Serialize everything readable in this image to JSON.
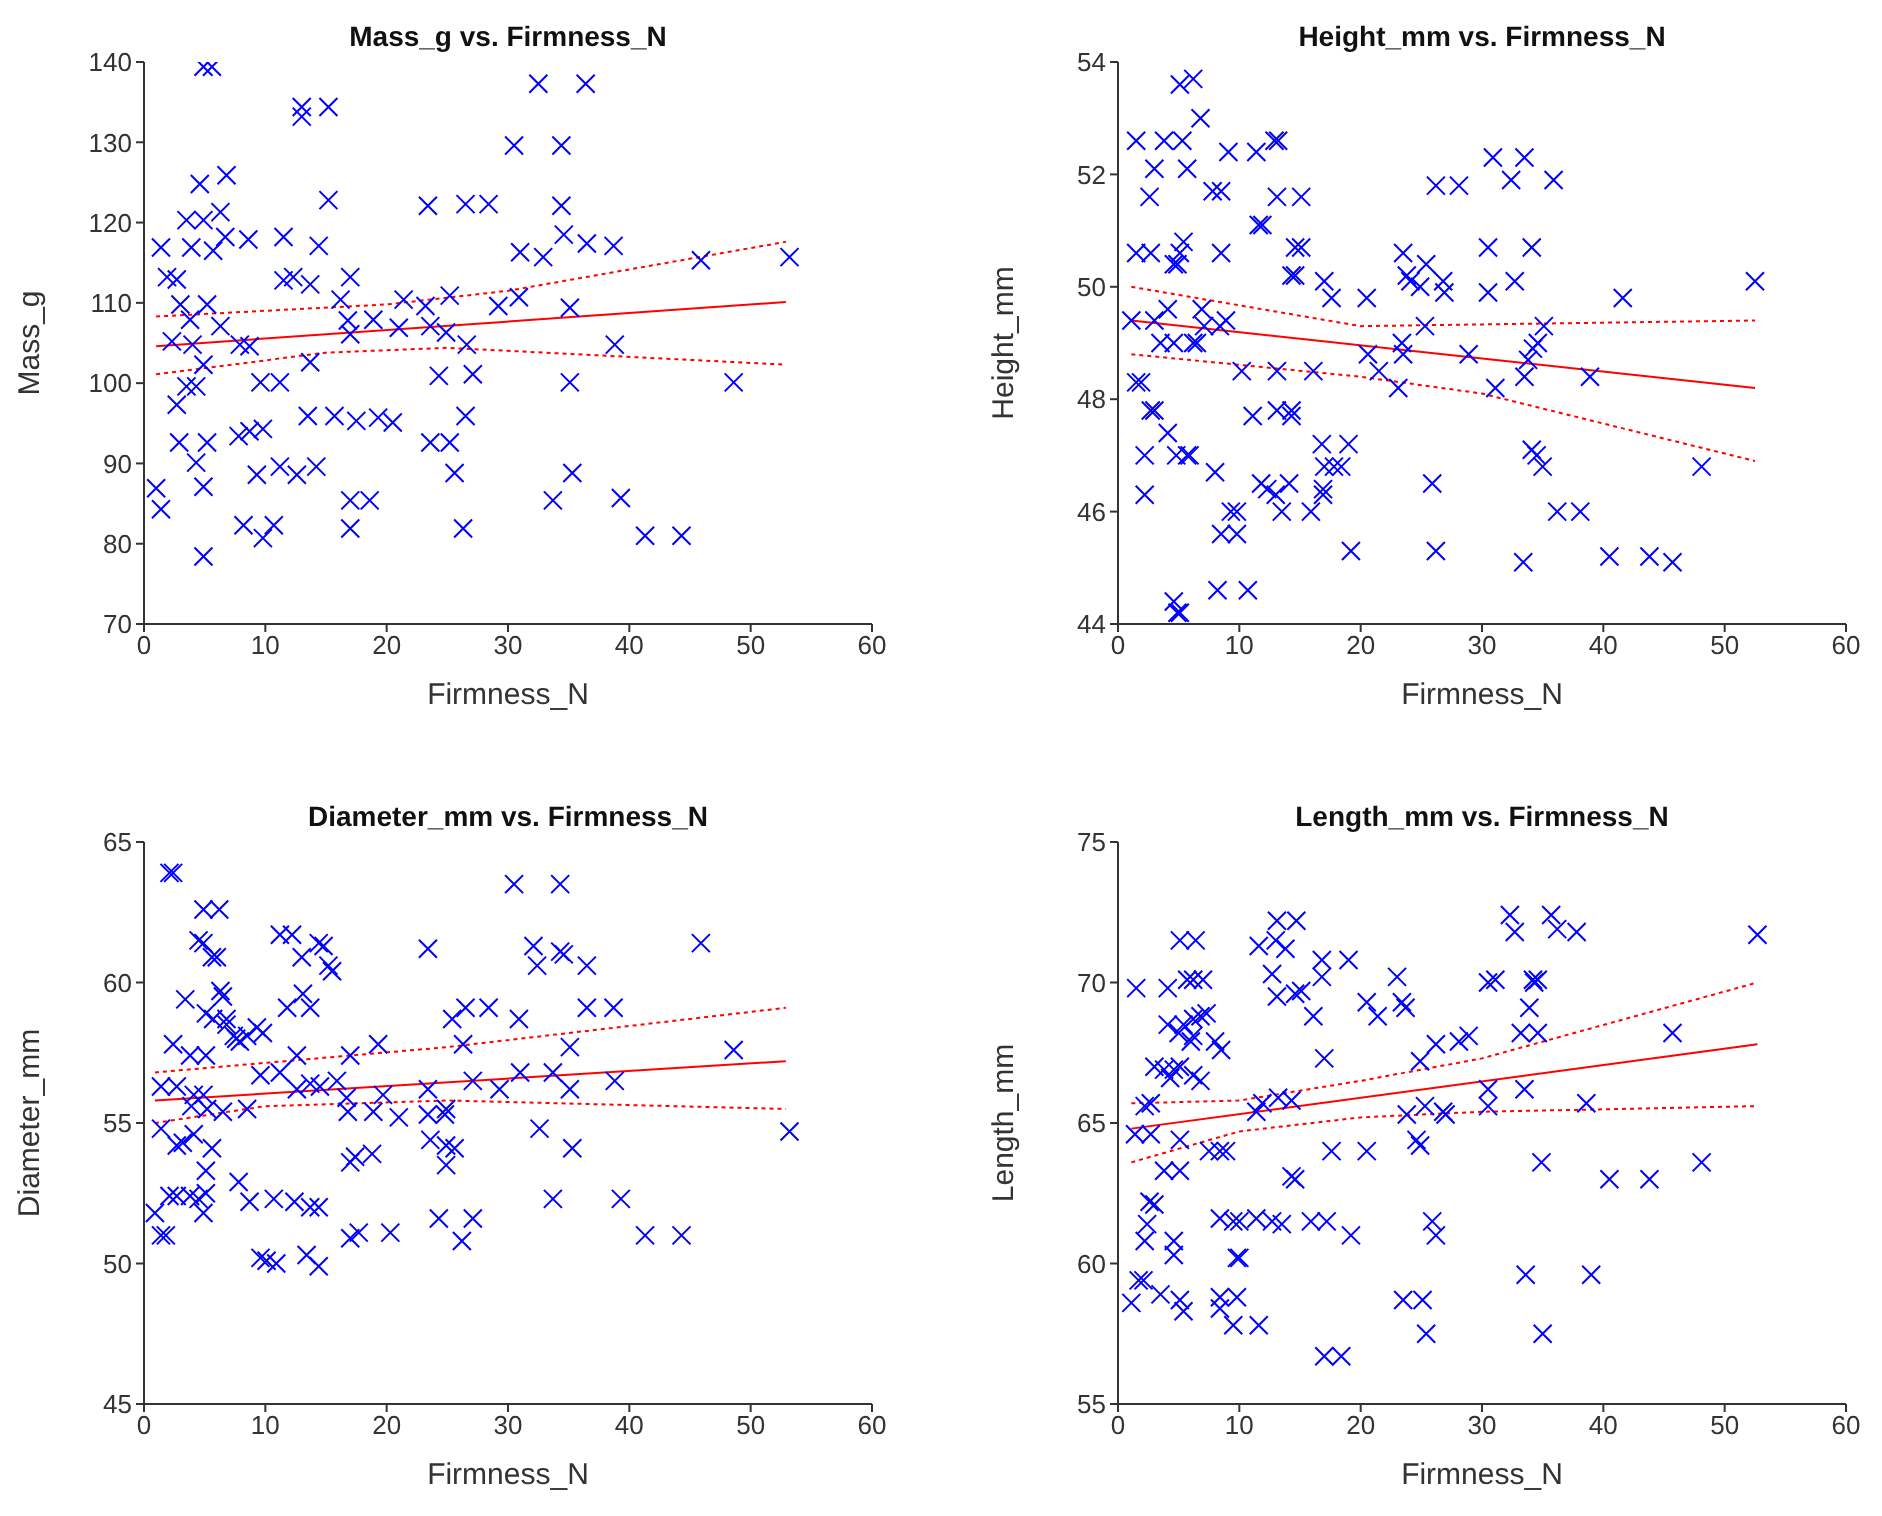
{
  "chart_data": [
    {
      "type": "scatter",
      "title": "Mass_g vs. Firmness_N",
      "xlabel": "Firmness_N",
      "ylabel": "Mass_g",
      "xlim": [
        0,
        60
      ],
      "ylim": [
        70,
        140
      ],
      "xticks": [
        0,
        10,
        20,
        30,
        40,
        50,
        60
      ],
      "yticks": [
        70,
        80,
        90,
        100,
        110,
        120,
        130,
        140
      ],
      "marker": "cross",
      "series": [
        {
          "color": "#0000ff",
          "x": [
            4.9,
            5.6,
            32.5,
            36.4,
            13.0,
            13.0,
            15.2,
            30.5,
            34.4,
            4.6,
            6.8,
            6.3,
            15.2,
            23.4,
            26.5,
            28.4,
            34.4,
            3.5,
            4.9,
            1.4,
            3.9,
            5.7,
            6.7,
            8.6,
            11.5,
            14.4,
            31.0,
            32.9,
            34.6,
            36.5,
            38.7,
            45.9,
            53.2,
            1.9,
            2.7,
            11.5,
            12.3,
            13.7,
            17.0,
            3.0,
            5.2,
            16.2,
            21.4,
            23.2,
            25.2,
            29.2,
            30.9,
            35.1,
            3.8,
            6.3,
            16.8,
            18.9,
            21.0,
            23.6,
            24.9,
            2.3,
            4.0,
            7.9,
            8.7,
            17.0,
            26.6,
            38.8,
            4.9,
            13.7,
            9.6,
            11.2,
            24.3,
            27.1,
            35.1,
            48.6,
            3.5,
            4.3,
            2.7,
            13.5,
            15.7,
            17.5,
            19.3,
            20.5,
            26.5,
            2.9,
            5.2,
            7.8,
            8.7,
            9.8,
            23.6,
            25.2,
            4.3,
            1.0,
            4.9,
            9.3,
            11.2,
            12.6,
            14.2,
            25.6,
            35.3,
            1.4,
            33.7,
            39.3,
            17.0,
            18.6,
            8.2,
            10.7,
            9.8,
            17.0,
            26.3,
            41.3,
            44.3,
            4.9
          ],
          "values": [
            139.4,
            139.4,
            137.3,
            137.3,
            134.4,
            133.2,
            134.4,
            129.6,
            129.6,
            124.8,
            125.9,
            121.3,
            122.8,
            122.1,
            122.3,
            122.3,
            122.1,
            120.3,
            120.3,
            116.9,
            116.9,
            116.5,
            118.2,
            117.9,
            118.2,
            117.1,
            116.3,
            115.7,
            118.5,
            117.4,
            117.1,
            115.3,
            115.7,
            113.2,
            112.9,
            112.8,
            113.2,
            112.3,
            113.2,
            109.8,
            109.8,
            110.4,
            110.4,
            109.6,
            110.9,
            109.6,
            110.7,
            109.4,
            107.9,
            107.1,
            107.8,
            107.9,
            106.9,
            107.1,
            106.3,
            105.2,
            104.8,
            104.8,
            104.6,
            106.1,
            104.8,
            104.8,
            102.3,
            102.6,
            100.1,
            100.1,
            100.9,
            101.1,
            100.1,
            100.1,
            99.6,
            99.6,
            97.3,
            95.9,
            95.9,
            95.3,
            95.7,
            95.1,
            95.9,
            92.6,
            92.6,
            93.4,
            94.0,
            94.3,
            92.6,
            92.6,
            90.1,
            86.9,
            87.1,
            88.6,
            89.6,
            88.6,
            89.6,
            88.8,
            88.8,
            84.3,
            85.4,
            85.7,
            85.4,
            85.4,
            82.3,
            82.3,
            80.7,
            81.9,
            81.9,
            81.0,
            81.0,
            78.4
          ]
        },
        {
          "type": "line",
          "marker": "none",
          "color": "#ff0000",
          "line_style": "solid",
          "x": [
            1.0,
            52.9
          ],
          "values": [
            104.6,
            110.1
          ]
        },
        {
          "type": "line",
          "marker": "none",
          "color": "#ff0000",
          "line_style": "dotted",
          "x": [
            1.0,
            20,
            30,
            52.9
          ],
          "values": [
            108.3,
            109.8,
            111.5,
            117.6
          ]
        },
        {
          "type": "line",
          "marker": "none",
          "color": "#ff0000",
          "line_style": "dotted",
          "x": [
            1.0,
            15,
            25,
            52.9
          ],
          "values": [
            101.1,
            103.8,
            104.4,
            102.3
          ]
        }
      ]
    },
    {
      "type": "scatter",
      "title": "Height_mm vs. Firmness_N",
      "xlabel": "Firmness_N",
      "ylabel": "Height_mm",
      "xlim": [
        0,
        60
      ],
      "ylim": [
        44,
        54
      ],
      "xticks": [
        0,
        10,
        20,
        30,
        40,
        50,
        60
      ],
      "yticks": [
        44,
        46,
        48,
        50,
        52,
        54
      ],
      "marker": "cross",
      "series": [
        {
          "color": "#0000ff",
          "x": [
            5.1,
            6.2,
            6.8,
            1.5,
            3.8,
            5.3,
            3.0,
            5.7,
            9.1,
            11.4,
            12.9,
            13.2,
            26.2,
            28.1,
            30.9,
            32.4,
            33.5,
            35.9,
            2.6,
            13.1,
            15.1,
            7.8,
            8.5,
            11.6,
            11.9,
            1.5,
            2.7,
            5.1,
            5.4,
            8.5,
            14.6,
            15.1,
            30.5,
            34.1,
            4.6,
            4.9,
            14.6,
            14.3,
            23.5,
            23.8,
            24.1,
            24.9,
            25.4,
            26.8,
            26.9,
            17.0,
            17.6,
            20.5,
            30.5,
            32.7,
            41.6,
            52.5,
            1.1,
            3.0,
            4.1,
            6.9,
            7.1,
            25.3,
            35.1,
            34.6,
            34.2,
            33.8,
            3.5,
            4.6,
            6.2,
            6.5,
            8.4,
            8.9,
            23.4,
            10.2,
            13.1,
            16.1,
            20.6,
            21.5,
            23.1,
            23.5,
            28.9,
            31.1,
            33.5,
            38.9,
            1.5,
            1.9,
            2.7,
            3.0,
            11.1,
            13.1,
            14.3,
            14.3,
            4.1,
            2.2,
            4.8,
            5.7,
            5.9,
            16.8,
            19.0,
            17.0,
            17.8,
            18.4,
            34.1,
            34.5,
            35.0,
            48.1,
            2.2,
            8.0,
            9.3,
            9.8,
            11.8,
            12.3,
            13.0,
            14.1,
            16.9,
            16.9,
            25.9,
            13.5,
            15.9,
            36.2,
            38.1,
            8.5,
            9.8,
            19.2,
            26.2,
            33.4,
            40.5,
            43.8,
            45.7,
            8.2,
            10.7,
            4.6,
            5.1,
            4.9
          ],
          "values": [
            53.6,
            53.7,
            53.0,
            52.6,
            52.6,
            52.6,
            52.1,
            52.1,
            52.4,
            52.4,
            52.6,
            52.6,
            51.8,
            51.8,
            52.3,
            51.9,
            52.3,
            51.9,
            51.6,
            51.6,
            51.6,
            51.7,
            51.7,
            51.1,
            51.1,
            50.6,
            50.6,
            50.6,
            50.8,
            50.6,
            50.7,
            50.7,
            50.7,
            50.7,
            50.4,
            50.4,
            50.2,
            50.2,
            50.6,
            50.2,
            50.1,
            50.0,
            50.4,
            50.1,
            49.9,
            50.1,
            49.8,
            49.8,
            49.9,
            50.1,
            49.8,
            50.1,
            49.4,
            49.4,
            49.6,
            49.6,
            49.3,
            49.3,
            49.3,
            49.0,
            48.9,
            48.7,
            49.0,
            49.0,
            49.0,
            49.0,
            49.3,
            49.4,
            49.0,
            48.5,
            48.5,
            48.5,
            48.8,
            48.5,
            48.2,
            48.8,
            48.8,
            48.2,
            48.4,
            48.4,
            48.3,
            48.3,
            47.8,
            47.8,
            47.7,
            47.8,
            47.8,
            47.7,
            47.4,
            47.0,
            47.0,
            47.0,
            47.0,
            47.2,
            47.2,
            46.8,
            46.8,
            46.8,
            47.1,
            47.0,
            46.8,
            46.8,
            46.3,
            46.7,
            46.0,
            46.0,
            46.5,
            46.4,
            46.3,
            46.5,
            46.4,
            46.3,
            46.5,
            46.0,
            46.0,
            46.0,
            46.0,
            45.6,
            45.6,
            45.3,
            45.3,
            45.1,
            45.2,
            45.2,
            45.1,
            44.6,
            44.6,
            44.4,
            44.2,
            44.2
          ]
        },
        {
          "type": "line",
          "marker": "none",
          "color": "#ff0000",
          "line_style": "solid",
          "x": [
            1.1,
            52.5
          ],
          "values": [
            49.4,
            48.2
          ]
        },
        {
          "type": "line",
          "marker": "none",
          "color": "#ff0000",
          "line_style": "dotted",
          "x": [
            1.1,
            20,
            52.5
          ],
          "values": [
            50.0,
            49.3,
            49.4
          ]
        },
        {
          "type": "line",
          "marker": "none",
          "color": "#ff0000",
          "line_style": "dotted",
          "x": [
            1.1,
            20,
            30,
            52.5
          ],
          "values": [
            48.8,
            48.4,
            48.1,
            46.9
          ]
        }
      ]
    },
    {
      "type": "scatter",
      "title": "Diameter_mm vs. Firmness_N",
      "xlabel": "Firmness_N",
      "ylabel": "Diameter_mm",
      "xlim": [
        0,
        60
      ],
      "ylim": [
        45,
        65
      ],
      "xticks": [
        0,
        10,
        20,
        30,
        40,
        50,
        60
      ],
      "yticks": [
        45,
        50,
        55,
        60,
        65
      ],
      "marker": "cross",
      "series": [
        {
          "color": "#0000ff",
          "x": [
            2.1,
            2.4,
            30.5,
            34.3,
            4.9,
            6.2,
            4.5,
            4.9,
            5.6,
            6.0,
            11.2,
            12.2,
            13.0,
            14.4,
            14.8,
            15.2,
            15.5,
            23.4,
            32.1,
            32.4,
            34.3,
            34.6,
            36.5,
            45.9,
            3.4,
            6.3,
            6.5,
            5.1,
            5.7,
            6.8,
            11.8,
            13.1,
            13.7,
            25.4,
            26.5,
            28.4,
            30.9,
            36.5,
            38.7,
            6.8,
            7.4,
            7.6,
            7.9,
            8.5,
            9.3,
            9.8,
            2.4,
            3.8,
            5.1,
            12.6,
            17.0,
            19.3,
            26.3,
            35.1,
            48.6,
            9.6,
            11.2,
            15.9,
            27.1,
            29.3,
            31.0,
            33.7,
            35.1,
            38.8,
            19.7,
            23.4,
            24.8,
            1.4,
            2.7,
            4.1,
            4.9,
            12.6,
            13.7,
            14.5,
            16.7,
            3.9,
            5.2,
            6.5,
            8.5,
            16.8,
            18.9,
            21.0,
            23.4,
            24.9,
            53.2,
            1.4,
            2.7,
            3.2,
            4.1,
            5.6,
            32.6,
            35.3,
            23.6,
            24.9,
            25.6,
            17.0,
            17.4,
            18.8,
            24.9,
            5.1,
            7.8,
            8.7,
            5.1,
            2.1,
            2.7,
            3.8,
            4.5,
            4.9,
            10.7,
            12.4,
            13.7,
            14.4,
            33.7,
            39.3,
            0.9,
            1.4,
            1.8,
            17.0,
            17.7,
            20.3,
            24.3,
            27.1,
            26.2,
            41.3,
            44.3,
            9.6,
            10.1,
            10.9,
            13.4,
            14.4
          ],
          "values": [
            63.9,
            63.9,
            63.5,
            63.5,
            62.6,
            62.6,
            61.5,
            61.4,
            60.9,
            60.9,
            61.7,
            61.7,
            60.9,
            61.4,
            61.3,
            60.6,
            60.4,
            61.2,
            61.3,
            60.6,
            61.1,
            61.0,
            60.6,
            61.4,
            59.4,
            59.7,
            59.5,
            58.9,
            58.7,
            58.7,
            59.1,
            59.6,
            59.1,
            58.7,
            59.1,
            59.1,
            58.7,
            59.1,
            59.1,
            58.5,
            58.1,
            58.0,
            57.9,
            58.1,
            58.4,
            58.2,
            57.8,
            57.4,
            57.4,
            57.4,
            57.4,
            57.8,
            57.8,
            57.7,
            57.6,
            56.7,
            56.8,
            56.5,
            56.5,
            56.2,
            56.8,
            56.8,
            56.2,
            56.5,
            56.0,
            56.2,
            55.3,
            56.3,
            56.3,
            56.0,
            56.0,
            56.2,
            56.4,
            56.3,
            55.9,
            55.6,
            55.5,
            55.4,
            55.5,
            55.4,
            55.4,
            55.2,
            55.3,
            55.5,
            54.7,
            54.8,
            54.2,
            54.3,
            54.6,
            54.1,
            54.8,
            54.1,
            54.4,
            54.2,
            54.1,
            53.6,
            53.8,
            53.9,
            53.5,
            53.3,
            52.9,
            52.2,
            52.5,
            52.4,
            52.4,
            52.4,
            52.3,
            51.8,
            52.3,
            52.2,
            52.0,
            52.0,
            52.3,
            52.3,
            51.8,
            51.0,
            51.0,
            50.9,
            51.1,
            51.1,
            51.6,
            51.6,
            50.8,
            51.0,
            51.0,
            50.2,
            50.1,
            50.0,
            50.3,
            49.9
          ]
        },
        {
          "type": "line",
          "marker": "none",
          "color": "#ff0000",
          "line_style": "solid",
          "x": [
            0.9,
            52.9
          ],
          "values": [
            55.8,
            57.2
          ]
        },
        {
          "type": "line",
          "marker": "none",
          "color": "#ff0000",
          "line_style": "dotted",
          "x": [
            0.9,
            25,
            52.9
          ],
          "values": [
            56.8,
            57.7,
            59.1
          ]
        },
        {
          "type": "line",
          "marker": "none",
          "color": "#ff0000",
          "line_style": "dotted",
          "x": [
            0.9,
            10,
            25,
            52.9
          ],
          "values": [
            55.0,
            55.6,
            55.8,
            55.5
          ]
        }
      ]
    },
    {
      "type": "scatter",
      "title": "Length_mm vs. Firmness_N",
      "xlabel": "Firmness_N",
      "ylabel": "Length_mm",
      "xlim": [
        0,
        60
      ],
      "ylim": [
        55,
        75
      ],
      "xticks": [
        0,
        10,
        20,
        30,
        40,
        50,
        60
      ],
      "yticks": [
        55,
        60,
        65,
        70,
        75
      ],
      "marker": "cross",
      "series": [
        {
          "color": "#0000ff",
          "x": [
            13.1,
            14.7,
            35.7,
            36.2,
            37.8,
            32.3,
            32.7,
            52.7,
            5.1,
            6.4,
            11.6,
            13.0,
            13.8,
            16.8,
            19.0,
            1.5,
            4.1,
            5.7,
            6.2,
            7.0,
            12.7,
            16.8,
            23.0,
            30.5,
            31.1,
            34.2,
            34.3,
            34.6,
            13.1,
            14.6,
            15.1,
            20.5,
            21.4,
            23.4,
            23.7,
            33.9,
            4.1,
            5.4,
            6.2,
            6.8,
            7.3,
            16.1,
            6.0,
            5.0,
            6.2,
            34.6,
            33.2,
            8.0,
            8.5,
            17.0,
            24.9,
            26.2,
            28.1,
            28.9,
            45.7,
            3.0,
            3.8,
            4.6,
            5.1,
            6.2,
            6.8,
            4.3,
            30.5,
            33.5,
            2.7,
            2.2,
            11.9,
            13.2,
            14.3,
            11.4,
            23.8,
            25.3,
            26.8,
            27.0,
            30.5,
            38.6,
            1.4,
            2.7,
            5.1,
            24.6,
            24.9,
            7.5,
            8.4,
            8.9,
            17.6,
            20.5,
            34.9,
            40.5,
            43.8,
            48.1,
            3.8,
            5.1,
            14.3,
            14.6,
            2.6,
            3.0,
            2.4,
            2.2,
            4.6,
            4.6,
            8.4,
            9.5,
            10.0,
            11.4,
            12.7,
            13.5,
            15.9,
            17.2,
            19.2,
            25.9,
            26.2,
            9.8,
            10.0,
            1.7,
            2.1,
            1.1,
            3.5,
            5.1,
            5.4,
            8.4,
            9.8,
            8.4,
            9.5,
            11.6,
            23.5,
            25.1,
            25.4,
            33.6,
            35.0,
            39.0,
            17.0,
            18.4
          ],
          "values": [
            72.2,
            72.2,
            72.4,
            71.9,
            71.8,
            72.4,
            71.8,
            71.7,
            71.5,
            71.5,
            71.3,
            71.5,
            71.2,
            70.8,
            70.8,
            69.8,
            69.8,
            70.1,
            70.1,
            70.1,
            70.3,
            70.2,
            70.2,
            70.0,
            70.1,
            70.1,
            70.0,
            70.1,
            69.5,
            69.6,
            69.7,
            69.3,
            68.8,
            69.3,
            69.1,
            69.1,
            68.5,
            68.5,
            68.7,
            68.8,
            68.9,
            68.8,
            67.9,
            68.2,
            68.1,
            68.2,
            68.2,
            67.9,
            67.6,
            67.3,
            67.2,
            67.8,
            67.9,
            68.1,
            68.2,
            67.0,
            66.9,
            66.9,
            67.0,
            66.7,
            66.5,
            66.6,
            66.2,
            66.2,
            65.7,
            65.6,
            65.7,
            65.9,
            65.8,
            65.4,
            65.3,
            65.6,
            65.4,
            65.3,
            65.6,
            65.7,
            64.6,
            64.6,
            64.4,
            64.4,
            64.2,
            64.0,
            64.0,
            64.0,
            64.0,
            64.0,
            63.6,
            63.0,
            63.0,
            63.6,
            63.3,
            63.3,
            63.1,
            63.0,
            62.2,
            62.1,
            61.4,
            60.8,
            60.8,
            60.3,
            61.6,
            61.5,
            61.5,
            61.6,
            61.5,
            61.4,
            61.5,
            61.5,
            61.0,
            61.5,
            61.0,
            60.2,
            60.2,
            59.4,
            59.4,
            58.6,
            58.9,
            58.7,
            58.3,
            58.8,
            58.8,
            58.4,
            57.8,
            57.8,
            58.7,
            58.7,
            57.5,
            59.6,
            57.5,
            59.6,
            56.7,
            56.7
          ]
        },
        {
          "type": "line",
          "marker": "none",
          "color": "#ff0000",
          "line_style": "solid",
          "x": [
            1.1,
            52.7
          ],
          "values": [
            64.8,
            67.8
          ]
        },
        {
          "type": "line",
          "marker": "none",
          "color": "#ff0000",
          "line_style": "dotted",
          "x": [
            1.1,
            10,
            20,
            30,
            52.7
          ],
          "values": [
            65.7,
            65.8,
            66.5,
            67.3,
            70.0
          ]
        },
        {
          "type": "line",
          "marker": "none",
          "color": "#ff0000",
          "line_style": "dotted",
          "x": [
            1.1,
            10,
            20,
            30,
            52.7
          ],
          "values": [
            63.6,
            64.7,
            65.2,
            65.4,
            65.6
          ]
        }
      ]
    }
  ]
}
